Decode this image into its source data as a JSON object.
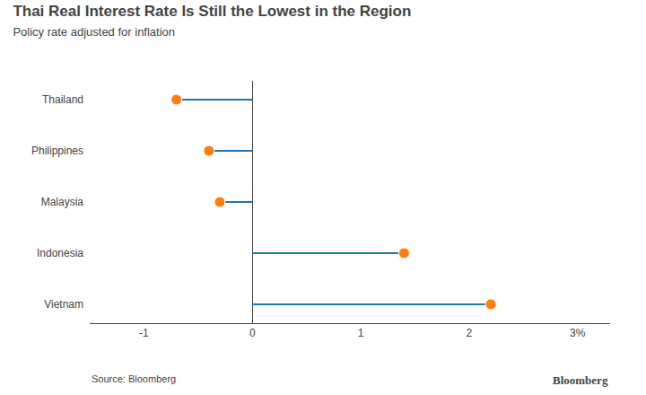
{
  "chart_data": {
    "type": "lollipop",
    "orientation": "horizontal",
    "title": "Thai Real Interest Rate Is Still the Lowest in the Region",
    "subtitle": "Policy rate adjusted for inflation",
    "annotations": [
      "Source: Bloomberg",
      "Bloomberg"
    ],
    "categories": [
      "Thailand",
      "Philippines",
      "Malaysia",
      "Indonesia",
      "Vietnam"
    ],
    "values": [
      -0.7,
      -0.4,
      -0.3,
      1.4,
      2.2
    ],
    "xlim": [
      -1.5,
      3.3
    ],
    "xticks": [
      -1,
      0,
      1,
      2,
      {
        "value": 3,
        "label": "3%"
      }
    ],
    "grid": false
  }
}
